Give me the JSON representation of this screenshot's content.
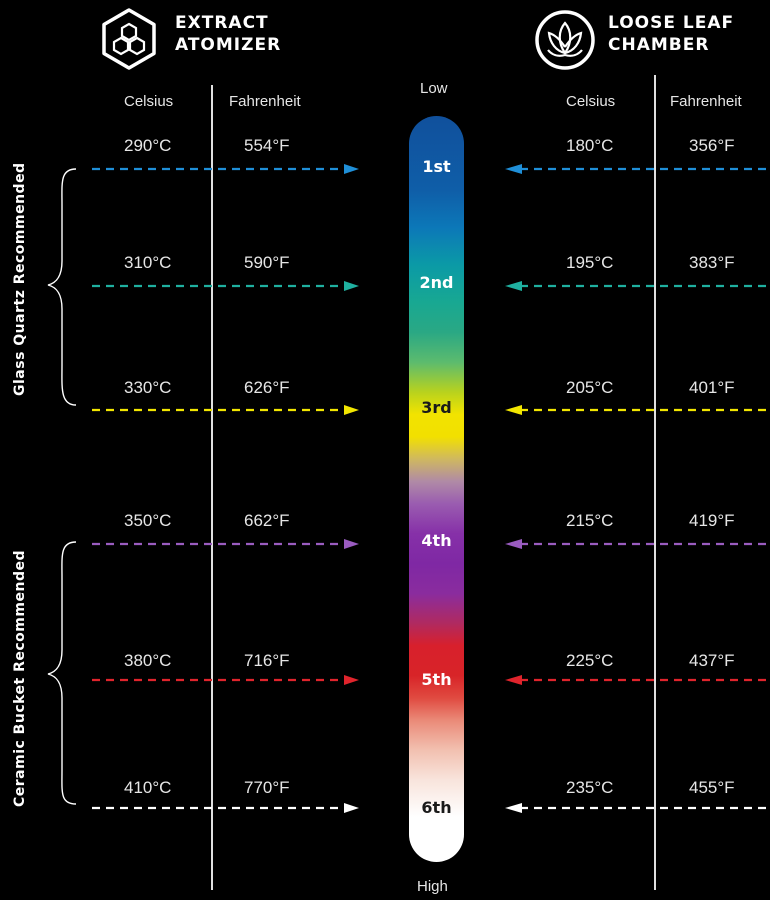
{
  "header": {
    "left_title_line1": "EXTRACT",
    "left_title_line2": "ATOMIZER",
    "right_title_line1": "LOOSE LEAF",
    "right_title_line2": "CHAMBER"
  },
  "left_columns": {
    "celsius": "Celsius",
    "fahrenheit": "Fahrenheit"
  },
  "right_columns": {
    "celsius": "Celsius",
    "fahrenheit": "Fahrenheit"
  },
  "scale": {
    "low": "Low",
    "high": "High"
  },
  "tiers": [
    {
      "label": "1st",
      "left_c": "290°C",
      "left_f": "554°F",
      "right_c": "180°C",
      "right_f": "356°F",
      "color": "#1f8fd8"
    },
    {
      "label": "2nd",
      "left_c": "310°C",
      "left_f": "590°F",
      "right_c": "195°C",
      "right_f": "383°F",
      "color": "#1fb0a0"
    },
    {
      "label": "3rd",
      "left_c": "330°C",
      "left_f": "626°F",
      "right_c": "205°C",
      "right_f": "401°F",
      "color": "#f2e600"
    },
    {
      "label": "4th",
      "left_c": "350°C",
      "left_f": "662°F",
      "right_c": "215°C",
      "right_f": "419°F",
      "color": "#9a5cc0"
    },
    {
      "label": "5th",
      "left_c": "380°C",
      "left_f": "716°F",
      "right_c": "225°C",
      "right_f": "437°F",
      "color": "#e0242c"
    },
    {
      "label": "6th",
      "left_c": "410°C",
      "left_f": "770°F",
      "right_c": "235°C",
      "right_f": "455°F",
      "color": "#ffffff"
    }
  ],
  "groups": {
    "glass": "Glass Quartz Recommended",
    "ceramic": "Ceramic Bucket Recommended"
  },
  "icons": {
    "left": "hexagon-molecule-icon",
    "right": "lotus-leaf-icon"
  }
}
